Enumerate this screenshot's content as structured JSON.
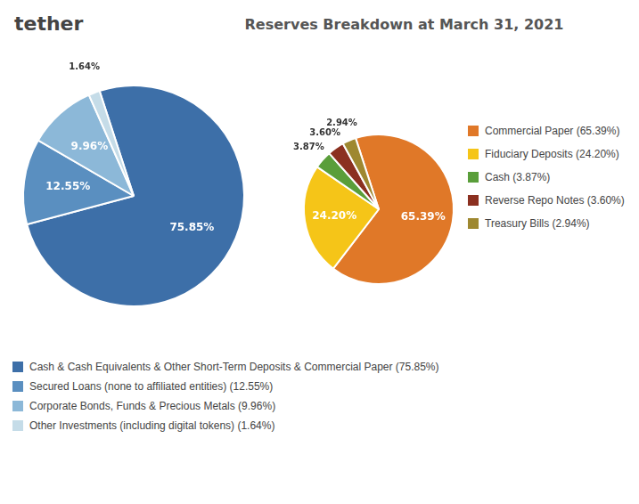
{
  "chart_data": [
    {
      "type": "pie",
      "title": "Reserves Breakdown at March 31, 2021",
      "annotations": [
        "tether"
      ],
      "categories": [
        "Cash & Cash Equivalents & Other Short-Term Deposits & Commercial Paper (75.85%)",
        "Secured Loans (none to affiliated entities) (12.55%)",
        "Corporate Bonds, Funds & Precious Metals (9.96%)",
        "Other Investments (including digital tokens) (1.64%)"
      ],
      "values": [
        75.85,
        12.55,
        9.96,
        1.64
      ],
      "value_labels": [
        "75.85%",
        "12.55%",
        "9.96%",
        "1.64%"
      ],
      "colors": [
        "#3d6fa8",
        "#5a8fc0",
        "#8cb8d8",
        "#c5dce8"
      ],
      "data_labels": true,
      "legend": "bottom"
    },
    {
      "type": "pie",
      "categories": [
        "Commercial Paper (65.39%)",
        "Fiduciary Deposits (24.20%)",
        "Cash (3.87%)",
        "Reverse Repo Notes (3.60%)",
        "Treasury Bills (2.94%)"
      ],
      "values": [
        65.39,
        24.2,
        3.87,
        3.6,
        2.94
      ],
      "value_labels": [
        "65.39%",
        "24.20%",
        "3.87%",
        "3.60%",
        "2.94%"
      ],
      "colors": [
        "#e07828",
        "#f5c518",
        "#5a9e3a",
        "#8b3020",
        "#9e8830"
      ],
      "data_labels": true,
      "legend": "right"
    }
  ]
}
